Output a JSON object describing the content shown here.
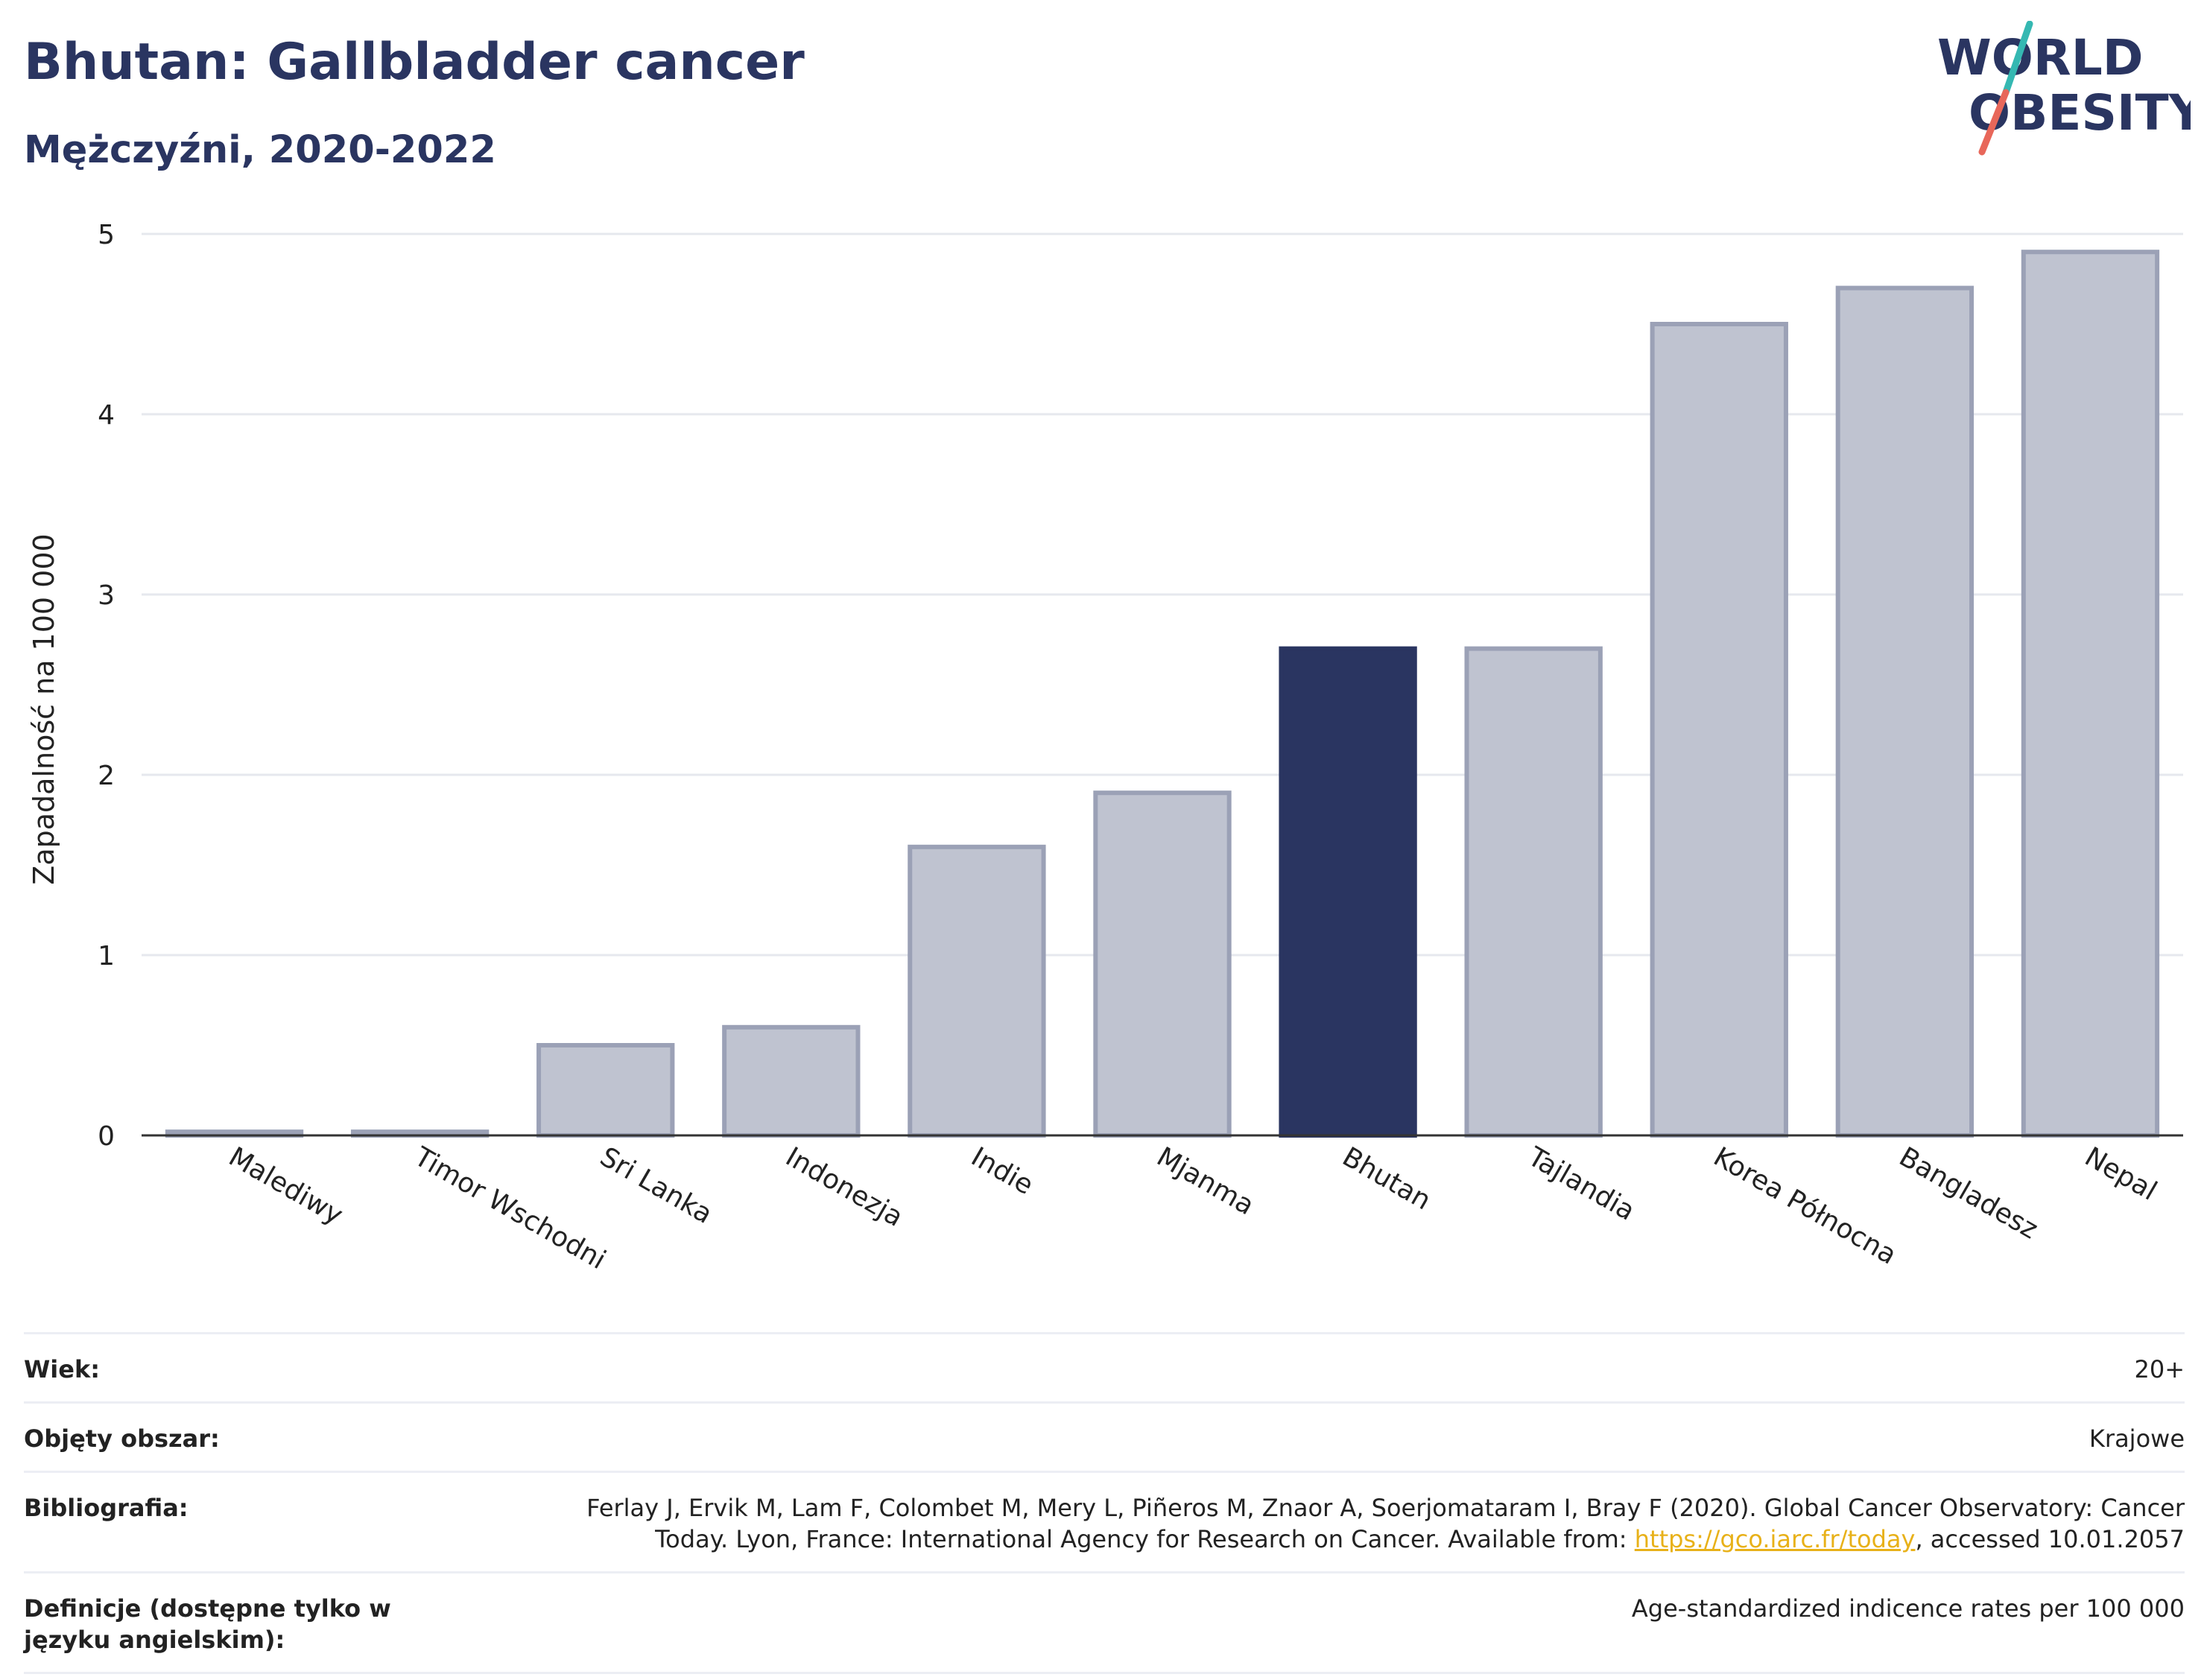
{
  "header": {
    "title": "Bhutan: Gallbladder cancer",
    "subtitle": "Mężczyźni, 2020-2022"
  },
  "logo": {
    "line1": "WORLD",
    "line2": "OBESITY",
    "accent_teal": "#35b8b2",
    "accent_red": "#e8675a"
  },
  "colors": {
    "highlight": "#2a3561",
    "bar": "#bfc3d0",
    "bar_border": "#9ba1b6",
    "grid": "#e6e8ee",
    "axis": "#333333"
  },
  "chart_data": {
    "type": "bar",
    "categories": [
      "Malediwy",
      "Timor Wschodni",
      "Sri Lanka",
      "Indonezja",
      "Indie",
      "Mjanma",
      "Bhutan",
      "Tajlandia",
      "Korea Północna",
      "Bangladesz",
      "Nepal"
    ],
    "values": [
      0.02,
      0.02,
      0.5,
      0.6,
      1.6,
      1.9,
      2.7,
      2.7,
      4.5,
      4.7,
      4.9
    ],
    "highlight": "Bhutan",
    "ylabel": "Zapadalność na 100 000",
    "xlabel": "",
    "ylim": [
      0,
      5
    ],
    "yticks": [
      0,
      1,
      2,
      3,
      4,
      5
    ],
    "grid": true
  },
  "meta": {
    "age_label": "Wiek:",
    "age_value": "20+",
    "area_label": "Objęty obszar:",
    "area_value": "Krajowe",
    "biblio_label": "Bibliografia:",
    "biblio_line1": "Ferlay J, Ervik M, Lam F, Colombet M, Mery L, Piñeros M, Znaor A, Soerjomataram I, Bray F (2020). Global Cancer Observatory: Cancer",
    "biblio_line2_pre": "Today. Lyon, France: International Agency for Research on Cancer. Available from: ",
    "biblio_link": "https://gco.iarc.fr/today",
    "biblio_line2_post": ", accessed 10.01.2057",
    "def_label": "Definicje (dostępne tylko w języku angielskim):",
    "def_value": "Age-standardized indicence rates per 100 000"
  }
}
